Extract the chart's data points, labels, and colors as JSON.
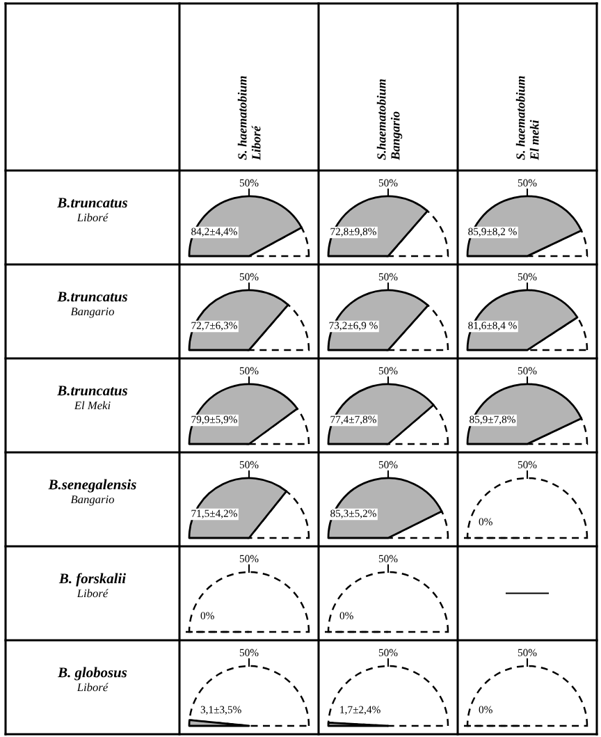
{
  "chart_data": [
    {
      "type": "other",
      "categories": [
        "S. haematobium\nLiboré",
        "S.haematobium\nBangario",
        "S. haematobium\nEl meki"
      ],
      "y_categories": [
        "B.truncatus\nLiboré",
        "B.truncatus\nBangario",
        "B.truncatus\nEl Meki",
        "B.senegalensis\nBangario",
        "B. forskalii\nLiboré",
        "B. globosus\nLiboré"
      ]
    },
    {
      "type": "pie",
      "values": [
        84.2,
        15.8
      ],
      "colors": [
        "#b4b4b4",
        "#ffffff"
      ],
      "annotations": [
        "50%",
        "84,2±4,4%"
      ]
    },
    {
      "type": "pie",
      "values": [
        72.8,
        27.2
      ],
      "colors": [
        "#b4b4b4",
        "#ffffff"
      ],
      "annotations": [
        "50%",
        "72,8±9,8%"
      ]
    },
    {
      "type": "pie",
      "values": [
        85.9,
        14.1
      ],
      "colors": [
        "#b4b4b4",
        "#ffffff"
      ],
      "annotations": [
        "50%",
        "85,9±8,2 %"
      ]
    },
    {
      "type": "pie",
      "values": [
        72.7,
        27.3
      ],
      "colors": [
        "#b4b4b4",
        "#ffffff"
      ],
      "annotations": [
        "50%",
        "72,7±6,3%"
      ]
    },
    {
      "type": "pie",
      "values": [
        73.2,
        26.8
      ],
      "colors": [
        "#b4b4b4",
        "#ffffff"
      ],
      "annotations": [
        "50%",
        "73,2±6,9 %"
      ]
    },
    {
      "type": "pie",
      "values": [
        81.6,
        18.4
      ],
      "colors": [
        "#b4b4b4",
        "#ffffff"
      ],
      "annotations": [
        "50%",
        "81,6±8,4 %"
      ]
    },
    {
      "type": "pie",
      "values": [
        79.9,
        20.1
      ],
      "colors": [
        "#b4b4b4",
        "#ffffff"
      ],
      "annotations": [
        "50%",
        "79,9±5,9%"
      ]
    },
    {
      "type": "pie",
      "values": [
        77.4,
        22.6
      ],
      "colors": [
        "#b4b4b4",
        "#ffffff"
      ],
      "annotations": [
        "50%",
        "77,4±7,8%"
      ]
    },
    {
      "type": "pie",
      "values": [
        85.9,
        14.1
      ],
      "colors": [
        "#b4b4b4",
        "#ffffff"
      ],
      "annotations": [
        "50%",
        "85,9±7,8%"
      ]
    },
    {
      "type": "pie",
      "values": [
        71.5,
        28.5
      ],
      "colors": [
        "#b4b4b4",
        "#ffffff"
      ],
      "annotations": [
        "50%",
        "71,5±4,2%"
      ]
    },
    {
      "type": "pie",
      "values": [
        85.3,
        14.7
      ],
      "colors": [
        "#b4b4b4",
        "#ffffff"
      ],
      "annotations": [
        "50%",
        "85,3±5,2%"
      ]
    },
    {
      "type": "pie",
      "values": [
        0,
        100
      ],
      "colors": [
        "#b4b4b4",
        "#ffffff"
      ],
      "annotations": [
        "50%",
        "0%"
      ]
    },
    {
      "type": "pie",
      "values": [
        0,
        100
      ],
      "colors": [
        "#b4b4b4",
        "#ffffff"
      ],
      "annotations": [
        "50%",
        "0%"
      ]
    },
    {
      "type": "pie",
      "values": [
        0,
        100
      ],
      "colors": [
        "#b4b4b4",
        "#ffffff"
      ],
      "annotations": [
        "50%",
        "0%"
      ]
    },
    {
      "type": "other"
    },
    {
      "type": "pie",
      "values": [
        3.1,
        96.9
      ],
      "colors": [
        "#b4b4b4",
        "#ffffff"
      ],
      "annotations": [
        "50%",
        "3,1±3,5%"
      ]
    },
    {
      "type": "pie",
      "values": [
        1.7,
        98.3
      ],
      "colors": [
        "#b4b4b4",
        "#ffffff"
      ],
      "annotations": [
        "50%",
        "1,7±2,4%"
      ]
    },
    {
      "type": "pie",
      "values": [
        0,
        100
      ],
      "colors": [
        "#b4b4b4",
        "#ffffff"
      ],
      "annotations": [
        "50%",
        "0%"
      ]
    }
  ]
}
